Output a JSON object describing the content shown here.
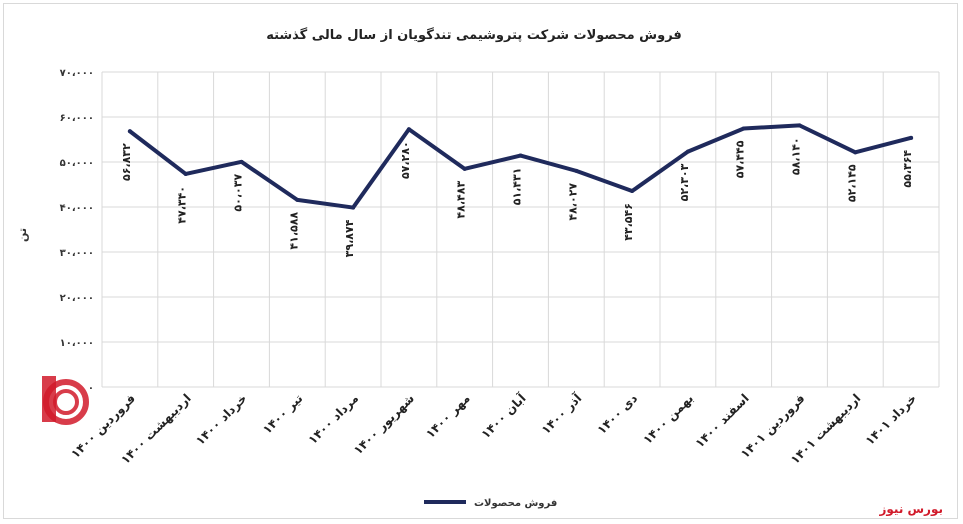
{
  "chart_data": {
    "type": "line",
    "title": "فروش محصولات شرکت پتروشیمی تندگویان از سال مالی گذشته",
    "ylabel": "تن",
    "xlabel": "",
    "ylim": [
      0,
      70000
    ],
    "yticks": [
      "۰",
      "۱۰،۰۰۰",
      "۲۰،۰۰۰",
      "۳۰،۰۰۰",
      "۴۰،۰۰۰",
      "۵۰،۰۰۰",
      "۶۰،۰۰۰",
      "۷۰،۰۰۰"
    ],
    "ytick_values": [
      0,
      10000,
      20000,
      30000,
      40000,
      50000,
      60000,
      70000
    ],
    "categories": [
      "فروردین ۱۴۰۰",
      "اردیبهشت ۱۴۰۰",
      "خرداد ۱۴۰۰",
      "تیر ۱۴۰۰",
      "مرداد ۱۴۰۰",
      "شهریور ۱۴۰۰",
      "مهر ۱۴۰۰",
      "آبان ۱۴۰۰",
      "آذر ۱۴۰۰",
      "دی ۱۴۰۰",
      "بهمن ۱۴۰۰",
      "اسفند ۱۴۰۰",
      "فروردین ۱۴۰۱",
      "اردیبهشت ۱۴۰۱",
      "خرداد ۱۴۰۱"
    ],
    "series": [
      {
        "name": "فروش محصولات",
        "color": "#1f2a5c",
        "values": [
          56832,
          47340,
          50037,
          41588,
          39874,
          57280,
          48483,
          51431,
          48027,
          43546,
          52303,
          57445,
          58140,
          52145,
          55364
        ],
        "labels": [
          "۵۶،۸۳۲",
          "۴۷،۳۴۰",
          "۵۰،۰۳۷",
          "۴۱،۵۸۸",
          "۳۹،۸۷۴",
          "۵۷،۲۸۰",
          "۴۸،۴۸۳",
          "۵۱،۴۳۱",
          "۴۸،۰۲۷",
          "۴۳،۵۴۶",
          "۵۲،۳۰۳",
          "۵۷،۴۴۵",
          "۵۸،۱۴۰",
          "۵۲،۱۴۵",
          "۵۵،۳۶۴"
        ]
      }
    ],
    "grid": true,
    "legend_position": "bottom"
  },
  "brand": {
    "footer": "بورس نیوز",
    "watermark_color": "#d11a2a"
  }
}
